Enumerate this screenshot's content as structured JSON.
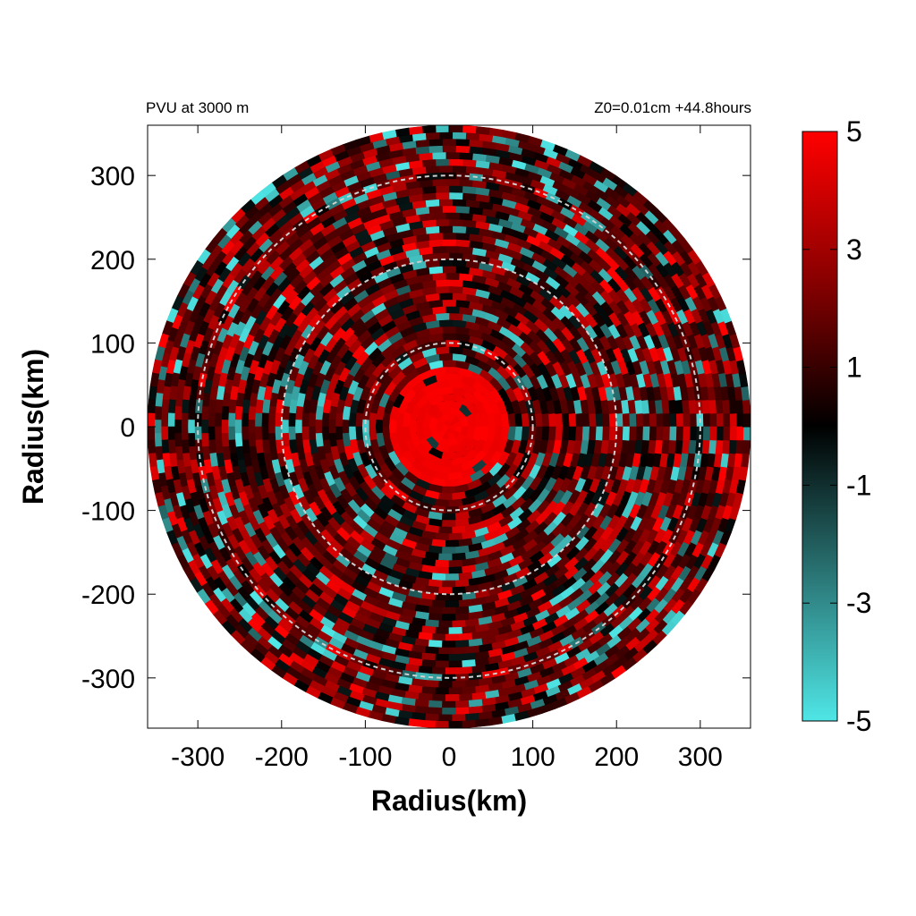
{
  "chart_data": {
    "type": "heatmap",
    "title_left": "PVU at  3000 m",
    "title_right": "Z0=0.01cm  +44.8hours",
    "xlabel": "Radius(km)",
    "ylabel": "Radius(km)",
    "xlim": [
      -360,
      360
    ],
    "ylim": [
      -360,
      360
    ],
    "x_ticks": [
      -300,
      -200,
      -100,
      0,
      100,
      200,
      300
    ],
    "y_ticks": [
      300,
      200,
      100,
      0,
      -100,
      -200,
      -300
    ],
    "domain_radius_km": 360,
    "reference_circles_km": [
      100,
      200,
      300
    ],
    "colorbar": {
      "min": -5,
      "max": 5,
      "ticks": [
        5,
        3,
        1,
        -1,
        -3,
        -5
      ],
      "colors": {
        "high": "#ff0000",
        "mid": "#000000",
        "low": "#4fe6e6"
      }
    },
    "field_summary": {
      "core_radius_km": 70,
      "core_value": 5,
      "background_value": 0.6
    }
  }
}
